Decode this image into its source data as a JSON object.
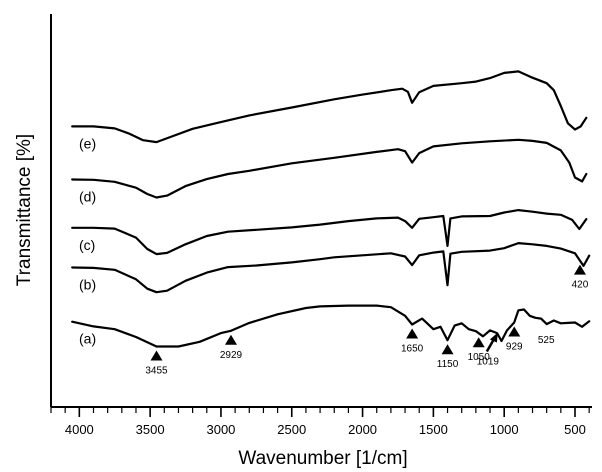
{
  "chart_data": {
    "type": "line",
    "xlabel": "Wavenumber [1/cm]",
    "ylabel": "Transmittance [%]",
    "xlim": [
      4200,
      380
    ],
    "x_reversed": true,
    "y_units": "arbitrary, spectra vertically offset",
    "ylim": [
      0,
      100
    ],
    "grid": false,
    "legend": "none (series labelled inline at left)",
    "xticks": [
      4000,
      3500,
      3000,
      2500,
      2000,
      1500,
      1000,
      500
    ],
    "series": [
      {
        "name": "(a)",
        "label": "(a)",
        "points": [
          [
            4050,
            21.7
          ],
          [
            3900,
            20.5
          ],
          [
            3750,
            19.8
          ],
          [
            3600,
            17.8
          ],
          [
            3455,
            15.4
          ],
          [
            3300,
            15.4
          ],
          [
            3150,
            16.6
          ],
          [
            3000,
            18.8
          ],
          [
            2929,
            19.4
          ],
          [
            2800,
            21.4
          ],
          [
            2600,
            23.6
          ],
          [
            2400,
            25.2
          ],
          [
            2300,
            25.6
          ],
          [
            2100,
            25.8
          ],
          [
            1900,
            25.8
          ],
          [
            1800,
            25.4
          ],
          [
            1700,
            23.2
          ],
          [
            1650,
            21.0
          ],
          [
            1580,
            22.5
          ],
          [
            1500,
            19.8
          ],
          [
            1450,
            20.4
          ],
          [
            1400,
            17.0
          ],
          [
            1350,
            20.7
          ],
          [
            1300,
            21.3
          ],
          [
            1250,
            19.8
          ],
          [
            1200,
            19.3
          ],
          [
            1150,
            18.0
          ],
          [
            1100,
            19.5
          ],
          [
            1050,
            18.8
          ],
          [
            1019,
            16.8
          ],
          [
            980,
            19.5
          ],
          [
            929,
            21.5
          ],
          [
            900,
            24.6
          ],
          [
            860,
            24.8
          ],
          [
            820,
            23.2
          ],
          [
            780,
            22.7
          ],
          [
            740,
            22.5
          ],
          [
            700,
            21.1
          ],
          [
            650,
            22.0
          ],
          [
            600,
            21.3
          ],
          [
            550,
            21.4
          ],
          [
            500,
            21.5
          ],
          [
            450,
            20.4
          ],
          [
            400,
            21.8
          ]
        ]
      },
      {
        "name": "(b)",
        "label": "(b)",
        "points": [
          [
            4050,
            35.5
          ],
          [
            3900,
            35.4
          ],
          [
            3750,
            34.9
          ],
          [
            3600,
            32.5
          ],
          [
            3520,
            30.1
          ],
          [
            3455,
            29.2
          ],
          [
            3380,
            29.6
          ],
          [
            3250,
            32.1
          ],
          [
            3100,
            34.2
          ],
          [
            2950,
            35.6
          ],
          [
            2750,
            36.0
          ],
          [
            2500,
            36.8
          ],
          [
            2300,
            37.6
          ],
          [
            2200,
            38.1
          ],
          [
            2000,
            38.6
          ],
          [
            1800,
            39.1
          ],
          [
            1700,
            38.3
          ],
          [
            1650,
            36.1
          ],
          [
            1600,
            38.6
          ],
          [
            1500,
            39.3
          ],
          [
            1430,
            39.6
          ],
          [
            1400,
            31.0
          ],
          [
            1380,
            39.0
          ],
          [
            1300,
            39.5
          ],
          [
            1100,
            39.8
          ],
          [
            1000,
            40.4
          ],
          [
            900,
            41.7
          ],
          [
            800,
            41.4
          ],
          [
            700,
            41.0
          ],
          [
            600,
            40.3
          ],
          [
            500,
            39.1
          ],
          [
            440,
            35.9
          ],
          [
            400,
            38.5
          ]
        ]
      },
      {
        "name": "(c)",
        "label": "(c)",
        "points": [
          [
            4050,
            45.6
          ],
          [
            3900,
            45.6
          ],
          [
            3750,
            45.4
          ],
          [
            3600,
            43.1
          ],
          [
            3520,
            40.2
          ],
          [
            3455,
            38.9
          ],
          [
            3380,
            39.2
          ],
          [
            3250,
            41.4
          ],
          [
            3100,
            43.5
          ],
          [
            2950,
            44.6
          ],
          [
            2750,
            45.1
          ],
          [
            2500,
            45.7
          ],
          [
            2300,
            46.4
          ],
          [
            2100,
            47.3
          ],
          [
            1900,
            48.0
          ],
          [
            1750,
            48.2
          ],
          [
            1700,
            47.3
          ],
          [
            1650,
            45.6
          ],
          [
            1600,
            47.9
          ],
          [
            1500,
            48.3
          ],
          [
            1430,
            48.6
          ],
          [
            1400,
            41.0
          ],
          [
            1380,
            48.0
          ],
          [
            1300,
            48.5
          ],
          [
            1100,
            48.6
          ],
          [
            1000,
            49.5
          ],
          [
            900,
            50.1
          ],
          [
            800,
            49.7
          ],
          [
            700,
            49.2
          ],
          [
            600,
            48.9
          ],
          [
            520,
            47.6
          ],
          [
            470,
            45.3
          ],
          [
            420,
            47.8
          ]
        ]
      },
      {
        "name": "(d)",
        "label": "(d)",
        "points": [
          [
            4050,
            57.9
          ],
          [
            3900,
            57.8
          ],
          [
            3750,
            57.3
          ],
          [
            3600,
            55.8
          ],
          [
            3520,
            54.2
          ],
          [
            3455,
            53.3
          ],
          [
            3380,
            53.8
          ],
          [
            3250,
            56.2
          ],
          [
            3100,
            58.0
          ],
          [
            2950,
            59.3
          ],
          [
            2800,
            60.1
          ],
          [
            2500,
            62.0
          ],
          [
            2200,
            63.4
          ],
          [
            1900,
            64.9
          ],
          [
            1750,
            65.6
          ],
          [
            1700,
            65.1
          ],
          [
            1650,
            62.2
          ],
          [
            1600,
            64.6
          ],
          [
            1500,
            66.3
          ],
          [
            1300,
            67.1
          ],
          [
            1100,
            67.6
          ],
          [
            900,
            68.0
          ],
          [
            800,
            67.7
          ],
          [
            700,
            67.2
          ],
          [
            600,
            65.3
          ],
          [
            540,
            62.2
          ],
          [
            500,
            58.4
          ],
          [
            450,
            57.4
          ],
          [
            420,
            59.3
          ]
        ]
      },
      {
        "name": "(e)",
        "label": "(e)",
        "points": [
          [
            4050,
            71.4
          ],
          [
            3900,
            71.4
          ],
          [
            3750,
            70.9
          ],
          [
            3650,
            69.6
          ],
          [
            3550,
            67.9
          ],
          [
            3455,
            67.4
          ],
          [
            3350,
            68.8
          ],
          [
            3200,
            70.8
          ],
          [
            3000,
            72.5
          ],
          [
            2800,
            74.2
          ],
          [
            2500,
            76.2
          ],
          [
            2200,
            78.3
          ],
          [
            2000,
            79.5
          ],
          [
            1800,
            80.6
          ],
          [
            1720,
            81.0
          ],
          [
            1680,
            80.2
          ],
          [
            1650,
            77.4
          ],
          [
            1600,
            80.1
          ],
          [
            1500,
            81.7
          ],
          [
            1300,
            82.4
          ],
          [
            1200,
            82.8
          ],
          [
            1100,
            83.7
          ],
          [
            1000,
            85.0
          ],
          [
            900,
            85.4
          ],
          [
            800,
            83.8
          ],
          [
            700,
            82.4
          ],
          [
            650,
            80.6
          ],
          [
            600,
            76.6
          ],
          [
            550,
            72.2
          ],
          [
            500,
            70.6
          ],
          [
            460,
            71.4
          ],
          [
            420,
            73.6
          ]
        ]
      }
    ],
    "annotations": [
      {
        "x": 3455,
        "series": "(a)",
        "label": "3455"
      },
      {
        "x": 2929,
        "series": "(a)",
        "label": "2929"
      },
      {
        "x": 1650,
        "series": "(a)",
        "label": "1650"
      },
      {
        "x": 1400,
        "series": "(a)",
        "label": "1150"
      },
      {
        "x": 1180,
        "series": "(a)",
        "label": "1050"
      },
      {
        "x": 1080,
        "series": "(a)",
        "label": "1019",
        "pointer": "arrow"
      },
      {
        "x": 929,
        "series": "(a)",
        "label": "929"
      },
      {
        "x": 760,
        "series": "(a)",
        "label": "525",
        "pointer": "none"
      },
      {
        "x": 465,
        "series": "(b)",
        "label": "420"
      }
    ]
  }
}
